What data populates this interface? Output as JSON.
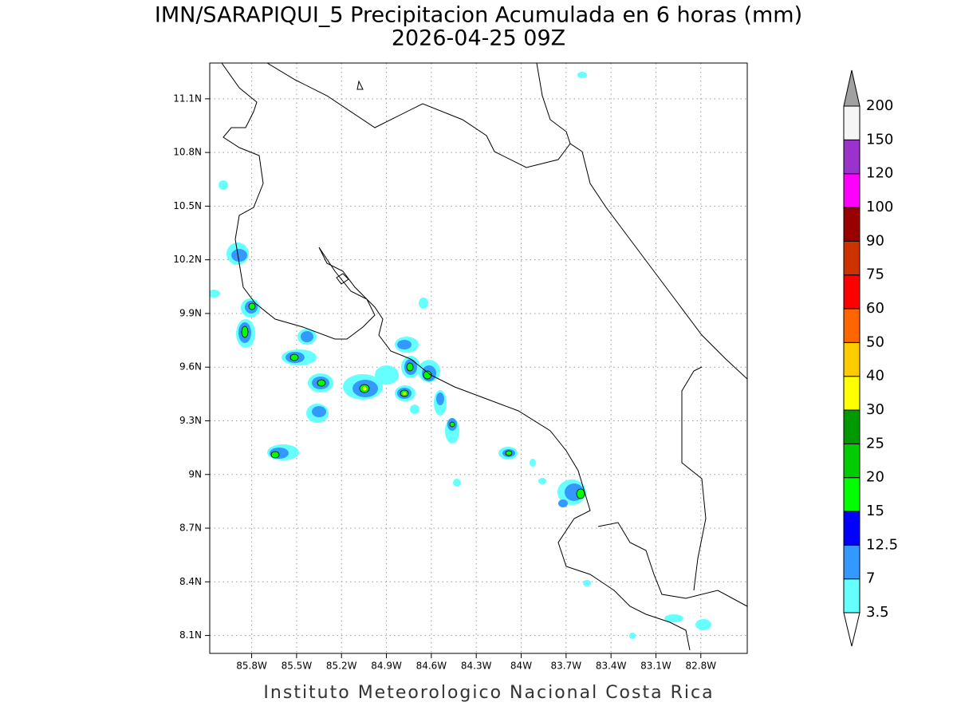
{
  "map": {
    "title": "IMN/SARAPIQUI_5 Precipitacion Acumulada en 6 horas (mm)",
    "subtitle": "2026-04-25 09Z",
    "footer": "Instituto Meteorologico Nacional Costa Rica",
    "xlim": [
      -86.08,
      -82.49
    ],
    "ylim": [
      8.0,
      11.3
    ],
    "xticks": [
      {
        "value": -85.8,
        "label": "85.8W"
      },
      {
        "value": -85.5,
        "label": "85.5W"
      },
      {
        "value": -85.2,
        "label": "85.2W"
      },
      {
        "value": -84.9,
        "label": "84.9W"
      },
      {
        "value": -84.6,
        "label": "84.6W"
      },
      {
        "value": -84.3,
        "label": "84.3W"
      },
      {
        "value": -84.0,
        "label": "84W"
      },
      {
        "value": -83.7,
        "label": "83.7W"
      },
      {
        "value": -83.4,
        "label": "83.4W"
      },
      {
        "value": -83.1,
        "label": "83.1W"
      },
      {
        "value": -82.8,
        "label": "82.8W"
      }
    ],
    "yticks": [
      {
        "value": 11.1,
        "label": "11.1N"
      },
      {
        "value": 10.8,
        "label": "10.8N"
      },
      {
        "value": 10.5,
        "label": "10.5N"
      },
      {
        "value": 10.2,
        "label": "10.2N"
      },
      {
        "value": 9.9,
        "label": "9.9N"
      },
      {
        "value": 9.6,
        "label": "9.6N"
      },
      {
        "value": 9.3,
        "label": "9.3N"
      },
      {
        "value": 9.0,
        "label": "9N"
      },
      {
        "value": 8.7,
        "label": "8.7N"
      },
      {
        "value": 8.4,
        "label": "8.4N"
      },
      {
        "value": 8.1,
        "label": "8.1N"
      }
    ],
    "grid": true,
    "colorbar": {
      "levels": [
        3.5,
        7,
        12.5,
        15,
        20,
        25,
        30,
        40,
        50,
        60,
        75,
        90,
        100,
        120,
        150,
        200
      ],
      "colors": [
        "#66ffff",
        "#3399ff",
        "#0000ff",
        "#00ff00",
        "#00cc00",
        "#009900",
        "#ffff00",
        "#ffcc00",
        "#ff6600",
        "#ff0000",
        "#cc3300",
        "#990000",
        "#ff00ff",
        "#9933cc",
        "#f5f5f5"
      ],
      "under_color": "#ffffff",
      "over_color": "#a0a0a0"
    }
  }
}
